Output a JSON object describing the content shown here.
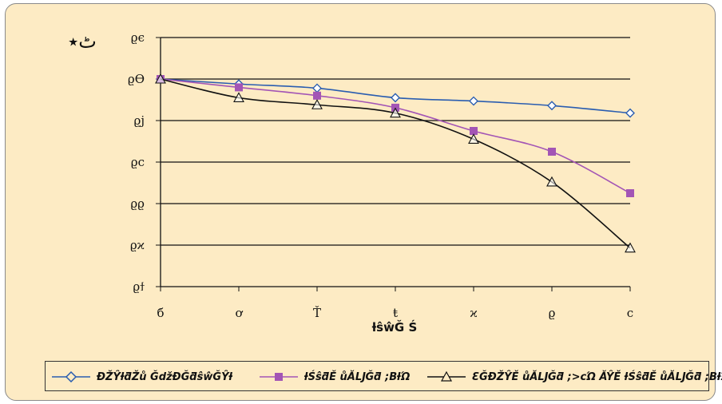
{
  "chart_data": {
    "type": "line",
    "ylabel": "ٹ٭",
    "xlabel": "ƚŝŵĞ Ś",
    "categories": [
      "б",
      "ơ",
      "Ť",
      "ŧ",
      "ϰ",
      "ϱ",
      "ϲ"
    ],
    "yticks": [
      {
        "value": 94,
        "label": "ϱϯ"
      },
      {
        "value": 95,
        "label": "ϱϰ"
      },
      {
        "value": 96,
        "label": "ϱϱ"
      },
      {
        "value": 97,
        "label": "ϱϲ"
      },
      {
        "value": 98,
        "label": "ϱj"
      },
      {
        "value": 99,
        "label": "ϱϴ"
      },
      {
        "value": 100,
        "label": "ϱϵ"
      }
    ],
    "ylim": [
      94,
      100
    ],
    "grid": true,
    "legend_position": "bottom",
    "series": [
      {
        "name": "ĐŽŶƚƌŽů ĞǆƉĞƌŝŵĞŶƚ",
        "color": "#2a5db0",
        "marker": "diamond",
        "values": [
          99,
          98.88,
          98.78,
          98.55,
          98.47,
          98.36,
          98.18
        ]
      },
      {
        "name": "ƚŚŝƌĚ ůĂǇĞƌ ;BƚΏ",
        "color": "#a355b5",
        "marker": "square",
        "values": [
          99,
          98.8,
          98.6,
          98.31,
          97.75,
          97.25,
          96.25
        ]
      },
      {
        "name": "ƐĞĐŽŶĚ ůĂǇĞƌ ;>ϲΏ ĂŶĚ ƚŚŝƌĚ ůĂǇĞƌ ;BƚΏ",
        "color": "#111111",
        "marker": "triangle",
        "values": [
          99,
          98.55,
          98.38,
          98.18,
          97.55,
          96.52,
          94.93
        ]
      }
    ]
  }
}
